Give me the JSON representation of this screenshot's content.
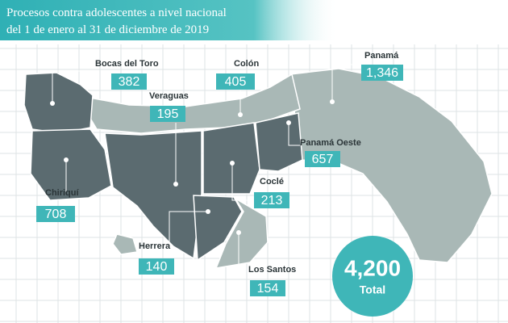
{
  "header": {
    "title_lines": [
      "Procesos contra adolescentes a nivel nacional",
      "del 1 de enero al 31 de diciembre de 2019"
    ]
  },
  "regions": [
    {
      "name": "Bocas del Toro",
      "value": "382"
    },
    {
      "name": "Colón",
      "value": "405"
    },
    {
      "name": "Panamá",
      "value": "1,346"
    },
    {
      "name": "Veraguas",
      "value": "195"
    },
    {
      "name": "Panamá Oeste",
      "value": "657"
    },
    {
      "name": "Chiriquí",
      "value": "708"
    },
    {
      "name": "Coclé",
      "value": "213"
    },
    {
      "name": "Herrera",
      "value": "140"
    },
    {
      "name": "Los Santos",
      "value": "154"
    }
  ],
  "total": {
    "value": "4,200",
    "caption": "Total"
  }
}
